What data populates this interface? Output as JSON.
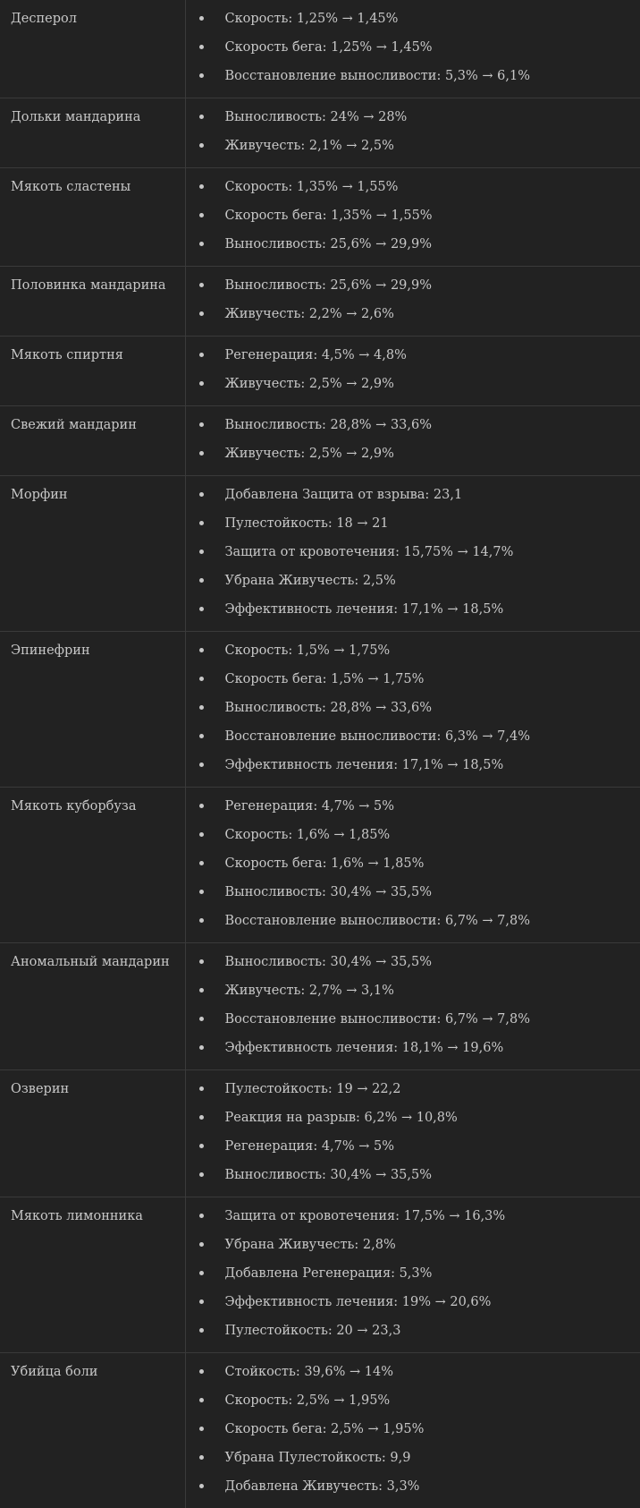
{
  "items": [
    {
      "name": "Десперол",
      "changes": [
        "Скорость: 1,25% → 1,45%",
        "Скорость бега: 1,25% → 1,45%",
        "Восстановление выносливости: 5,3% → 6,1%"
      ]
    },
    {
      "name": "Дольки мандарина",
      "changes": [
        "Выносливость: 24% → 28%",
        "Живучесть: 2,1% → 2,5%"
      ]
    },
    {
      "name": "Мякоть сластены",
      "changes": [
        "Скорость: 1,35% → 1,55%",
        "Скорость бега: 1,35% → 1,55%",
        "Выносливость: 25,6% → 29,9%"
      ]
    },
    {
      "name": "Половинка мандарина",
      "changes": [
        "Выносливость: 25,6% → 29,9%",
        "Живучесть: 2,2% → 2,6%"
      ]
    },
    {
      "name": "Мякоть спиртня",
      "changes": [
        "Регенерация: 4,5% → 4,8%",
        "Живучесть: 2,5% → 2,9%"
      ]
    },
    {
      "name": "Свежий мандарин",
      "changes": [
        "Выносливость: 28,8% → 33,6%",
        "Живучесть: 2,5% → 2,9%"
      ]
    },
    {
      "name": "Морфин",
      "changes": [
        "Добавлена Защита от взрыва: 23,1",
        "Пулестойкость: 18 → 21",
        "Защита от кровотечения: 15,75% → 14,7%",
        "Убрана Живучесть: 2,5%",
        "Эффективность лечения: 17,1% → 18,5%"
      ]
    },
    {
      "name": "Эпинефрин",
      "changes": [
        "Скорость: 1,5% → 1,75%",
        "Скорость бега: 1,5% → 1,75%",
        "Выносливость: 28,8% → 33,6%",
        "Восстановление выносливости: 6,3% → 7,4%",
        "Эффективность лечения: 17,1% → 18,5%"
      ]
    },
    {
      "name": "Мякоть куборбуза",
      "changes": [
        "Регенерация: 4,7% → 5%",
        "Скорость: 1,6% → 1,85%",
        "Скорость бега: 1,6% → 1,85%",
        "Выносливость: 30,4% → 35,5%",
        "Восстановление выносливости: 6,7% → 7,8%"
      ]
    },
    {
      "name": "Аномальный мандарин",
      "changes": [
        "Выносливость: 30,4% → 35,5%",
        "Живучесть: 2,7% → 3,1%",
        "Восстановление выносливости: 6,7% → 7,8%",
        "Эффективность лечения: 18,1% → 19,6%"
      ]
    },
    {
      "name": "Озверин",
      "changes": [
        "Пулестойкость: 19 → 22,2",
        "Реакция на разрыв: 6,2% → 10,8%",
        "Регенерация: 4,7% → 5%",
        "Выносливость: 30,4% → 35,5%"
      ]
    },
    {
      "name": "Мякоть лимонника",
      "changes": [
        "Защита от кровотечения: 17,5% → 16,3%",
        "Убрана Живучесть: 2,8%",
        "Добавлена Регенерация: 5,3%",
        "Эффективность лечения: 19% → 20,6%",
        "Пулестойкость: 20 → 23,3"
      ]
    },
    {
      "name": "Убийца боли",
      "changes": [
        "Стойкость: 39,6% → 14%",
        "Скорость: 2,5% → 1,95%",
        "Скорость бега: 2,5% → 1,95%",
        "Убрана Пулестойкость: 9,9",
        "Добавлена Живучесть: 3,3%"
      ]
    }
  ]
}
